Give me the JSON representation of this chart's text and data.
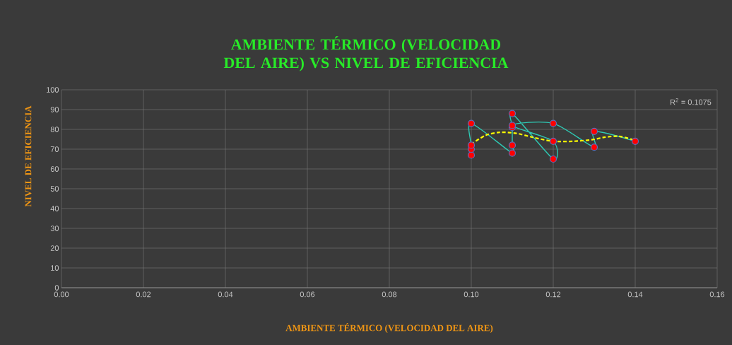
{
  "chart_data": {
    "type": "line",
    "title": "AMBIENTE TÉRMICO (VELOCIDAD DEL AIRE) VS NIVEL DE EFICIENCIA",
    "xlabel": "AMBIENTE TÉRMICO (VELOCIDAD DEL AIRE)",
    "ylabel": "NIVEL DE EFICIENCIA",
    "annotations": [
      "R$^{2}$ = 0.1075"
    ],
    "series": [
      {
        "color": "#2ec9b4",
        "marker": "circle",
        "line_style": "solid",
        "colors": [
          "#ff0000",
          "#ff0000",
          "#ff0000",
          "#ff0000",
          "#ff0000",
          "#ff0000",
          "#ff0000",
          "#ff0000",
          "#ff0000",
          "#ff0000",
          "#ff0000",
          "#ff0000",
          "#ff0000",
          "#ff0000",
          "#ff0000"
        ],
        "x": [
          0.1,
          0.1,
          0.1,
          0.1,
          0.11,
          0.11,
          0.11,
          0.11,
          0.12,
          0.12,
          0.11,
          0.12,
          0.13,
          0.13,
          0.14
        ],
        "values": [
          67,
          70,
          72,
          83,
          68,
          72,
          81,
          88,
          65,
          74,
          82,
          83,
          71,
          79,
          74
        ]
      },
      {
        "type": "line",
        "color": "#ffff00",
        "marker": "none",
        "line_style": "dashed",
        "x": [
          0.1,
          0.1035,
          0.107,
          0.111,
          0.115,
          0.12,
          0.125,
          0.1295,
          0.1325,
          0.136,
          0.14
        ],
        "values": [
          72.5,
          77,
          78.5,
          78,
          76,
          74,
          74,
          74.8,
          76,
          76.5,
          74.5
        ]
      }
    ],
    "xlim": [
      0,
      0.16
    ],
    "ylim": [
      0,
      100
    ],
    "xticks": [
      {
        "value": 0,
        "label": "0.00"
      },
      {
        "value": 0.02,
        "label": "0.02"
      },
      {
        "value": 0.04,
        "label": "0.04"
      },
      {
        "value": 0.06,
        "label": "0.06"
      },
      {
        "value": 0.08,
        "label": "0.08"
      },
      {
        "value": 0.1,
        "label": "0.10"
      },
      {
        "value": 0.12,
        "label": "0.12"
      },
      {
        "value": 0.14,
        "label": "0.14"
      },
      {
        "value": 0.16,
        "label": "0.16"
      }
    ],
    "yticks": [
      0,
      10,
      20,
      30,
      40,
      50,
      60,
      70,
      80,
      90,
      100
    ],
    "grid": true
  }
}
